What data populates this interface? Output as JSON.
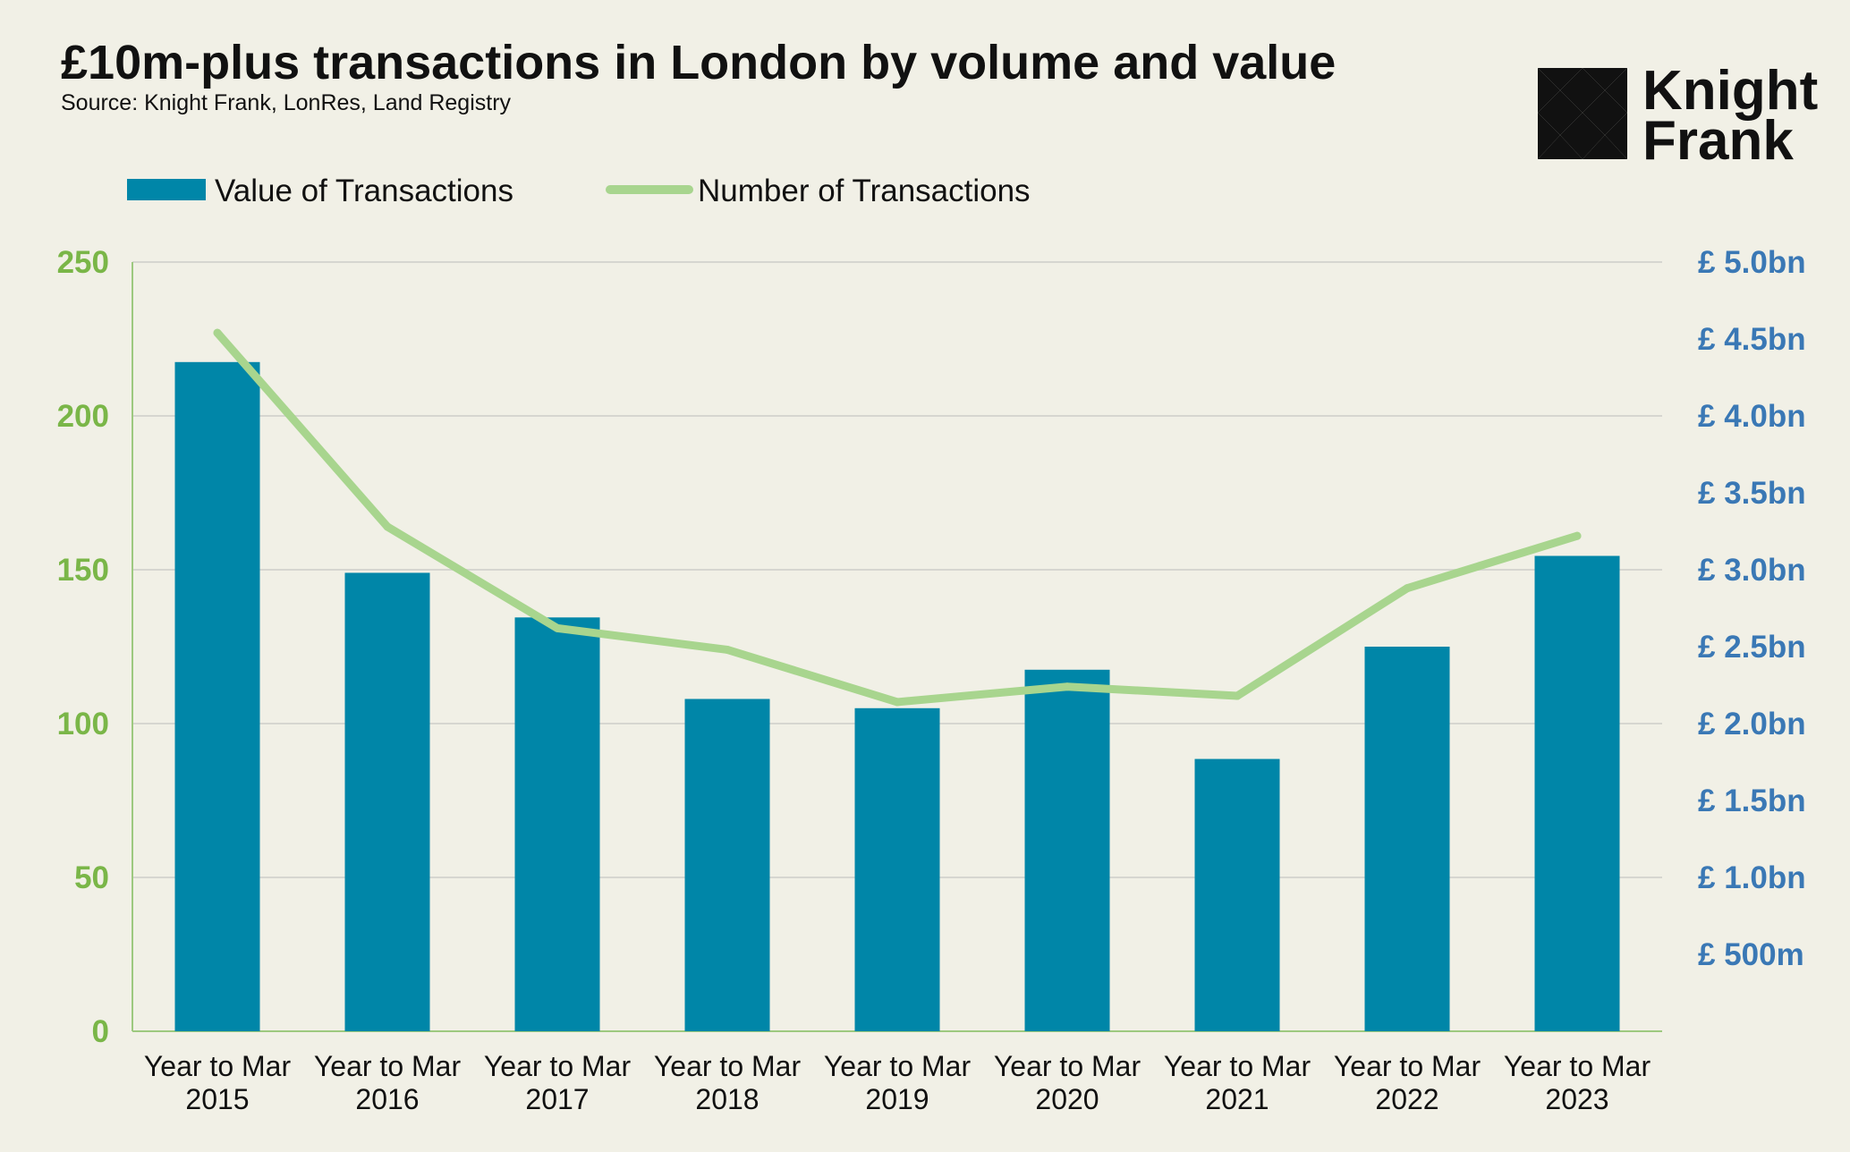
{
  "chart_data": {
    "type": "bar",
    "title": "£10m-plus transactions in London by volume and value",
    "subtitle": "Source: Knight Frank, LonRes, Land Registry",
    "categories": [
      [
        "Year to Mar",
        "2015"
      ],
      [
        "Year to Mar",
        "2016"
      ],
      [
        "Year to Mar",
        "2017"
      ],
      [
        "Year to Mar",
        "2018"
      ],
      [
        "Year to Mar",
        "2019"
      ],
      [
        "Year to Mar",
        "2020"
      ],
      [
        "Year to Mar",
        "2021"
      ],
      [
        "Year to Mar",
        "2022"
      ],
      [
        "Year to Mar",
        "2023"
      ]
    ],
    "series": [
      {
        "name": "Value of Transactions",
        "type": "bar",
        "axis": "right",
        "unit": "£bn",
        "color": "#0086a8",
        "values": [
          4.35,
          2.98,
          2.69,
          2.16,
          2.1,
          2.35,
          1.77,
          2.5,
          3.09
        ]
      },
      {
        "name": "Number of Transactions",
        "type": "line",
        "axis": "left",
        "color": "#a8d58e",
        "values": [
          227,
          164,
          131,
          124,
          107,
          112,
          109,
          144,
          161
        ]
      }
    ],
    "left_axis": {
      "ylim": [
        0,
        250
      ],
      "ticks": [
        0,
        50,
        100,
        150,
        200,
        250
      ],
      "tick_labels": [
        "0",
        "50",
        "100",
        "150",
        "200",
        "250"
      ],
      "color": "#7ab648"
    },
    "right_axis": {
      "ylim": [
        0,
        5.0
      ],
      "ticks": [
        0.5,
        1.0,
        1.5,
        2.0,
        2.5,
        3.0,
        3.5,
        4.0,
        4.5,
        5.0
      ],
      "tick_labels": [
        "£ 500m",
        "£ 1.0bn",
        "£ 1.5bn",
        "£ 2.0bn",
        "£ 2.5bn",
        "£ 3.0bn",
        "£ 3.5bn",
        "£ 4.0bn",
        "£ 4.5bn",
        "£ 5.0bn"
      ],
      "color": "#3a78b5"
    },
    "grid": true,
    "legend_position": "top-left"
  },
  "logo": {
    "line1": "Knight",
    "line2": "Frank",
    "icon": "knight-frank-chequer-icon"
  },
  "colors": {
    "background": "#f1f0e6",
    "gridline": "#d6d6d0",
    "axis": "#9dc97f"
  }
}
